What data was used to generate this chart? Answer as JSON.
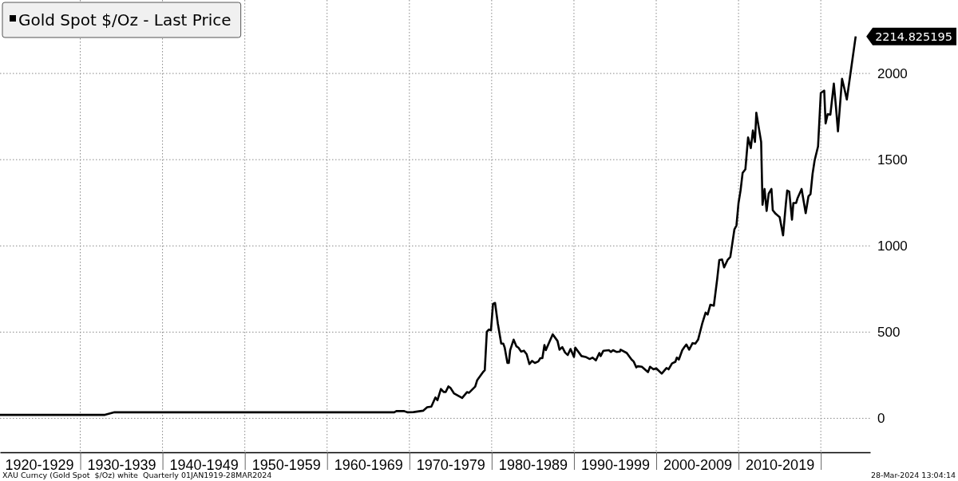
{
  "chart_data": {
    "type": "line",
    "legend": "top left",
    "grid": true,
    "xlim": [
      "1920-04",
      "2026-01"
    ],
    "ylim": [
      -197,
      2426
    ],
    "yticks": [
      0,
      500,
      1000,
      1500,
      2000
    ],
    "xticks": [
      {
        "value": "1925-01",
        "label": "1920-1929"
      },
      {
        "value": "1930-01",
        "label": null
      },
      {
        "value": "1935-01",
        "label": "1930-1939"
      },
      {
        "value": "1940-01",
        "label": null
      },
      {
        "value": "1945-01",
        "label": "1940-1949"
      },
      {
        "value": "1950-01",
        "label": null
      },
      {
        "value": "1955-01",
        "label": "1950-1959"
      },
      {
        "value": "1960-01",
        "label": null
      },
      {
        "value": "1965-01",
        "label": "1960-1969"
      },
      {
        "value": "1970-01",
        "label": null
      },
      {
        "value": "1975-01",
        "label": "1970-1979"
      },
      {
        "value": "1980-01",
        "label": null
      },
      {
        "value": "1985-01",
        "label": "1980-1989"
      },
      {
        "value": "1990-01",
        "label": null
      },
      {
        "value": "1995-01",
        "label": "1990-1999"
      },
      {
        "value": "2000-01",
        "label": null
      },
      {
        "value": "2005-01",
        "label": "2000-2009"
      },
      {
        "value": "2010-01",
        "label": null
      },
      {
        "value": "2015-01",
        "label": "2010-2019"
      },
      {
        "value": "2020-01",
        "label": null
      }
    ],
    "x": [
      "1920-04",
      "1933-01",
      "1934-03",
      "1968-03",
      "1968-06",
      "1969-05",
      "1969-10",
      "1970-07",
      "1971-09",
      "1972-03",
      "1972-09",
      "1973-03",
      "1973-06",
      "1973-11",
      "1974-03",
      "1974-06",
      "1974-10",
      "1975-01",
      "1975-06",
      "1976-06",
      "1977-01",
      "1977-04",
      "1978-01",
      "1978-04",
      "1979-01",
      "1979-03",
      "1979-06",
      "1979-09",
      "1979-12",
      "1980-03",
      "1980-06",
      "1980-10",
      "1981-03",
      "1981-06",
      "1981-08",
      "1981-12",
      "1982-02",
      "1982-04",
      "1982-09",
      "1983-01",
      "1983-04",
      "1983-08",
      "1983-12",
      "1984-04",
      "1984-08",
      "1984-12",
      "1985-04",
      "1985-09",
      "1985-12",
      "1986-03",
      "1986-06",
      "1986-08",
      "1987-01",
      "1987-06",
      "1988-01",
      "1988-04",
      "1988-08",
      "1988-12",
      "1989-04",
      "1989-08",
      "1990-01",
      "1990-03",
      "1990-12",
      "1991-06",
      "1991-12",
      "1992-04",
      "1992-09",
      "1993-02",
      "1993-04",
      "1993-08",
      "1994-04",
      "1994-07",
      "1994-10",
      "1995-03",
      "1995-08",
      "1995-09",
      "1996-06",
      "1997-01",
      "1997-04",
      "1997-08",
      "1997-10",
      "1998-04",
      "1999-01",
      "1999-04",
      "1999-09",
      "2000-01",
      "2000-09",
      "2001-04",
      "2001-07",
      "2001-12",
      "2002-05",
      "2002-07",
      "2002-10",
      "2003-03",
      "2003-07",
      "2003-09",
      "2004-01",
      "2004-06",
      "2004-10",
      "2005-02",
      "2005-08",
      "2006-01",
      "2006-04",
      "2006-08",
      "2007-01",
      "2007-06",
      "2007-09",
      "2008-01",
      "2008-04",
      "2008-09",
      "2009-01",
      "2009-07",
      "2009-10",
      "2010-01",
      "2010-04",
      "2010-07",
      "2010-11",
      "2011-03",
      "2011-07",
      "2011-10",
      "2012-01",
      "2012-03",
      "2012-10",
      "2012-12",
      "2013-03",
      "2013-06",
      "2013-09",
      "2014-01",
      "2014-03",
      "2014-07",
      "2015-01",
      "2015-06",
      "2015-10",
      "2015-12",
      "2016-03",
      "2016-07",
      "2016-09",
      "2017-01",
      "2017-03",
      "2017-09",
      "2018-03",
      "2018-07",
      "2018-10",
      "2019-01",
      "2019-04",
      "2019-09",
      "2020-01",
      "2020-06",
      "2020-08",
      "2020-11",
      "2021-03",
      "2021-08",
      "2021-11",
      "2022-02",
      "2022-08",
      "2022-11",
      "2023-03",
      "2024-03-28"
    ],
    "series": [
      {
        "name": "Gold Spot $/Oz - Last Price",
        "color": "#000000",
        "values": [
          20,
          20,
          35,
          35,
          42,
          42,
          35,
          36,
          44,
          64,
          68,
          121,
          105,
          170,
          153,
          153,
          185,
          176,
          145,
          118,
          152,
          148,
          184,
          222,
          271,
          279,
          502,
          515,
          510,
          664,
          669,
          549,
          433,
          433,
          410,
          321,
          321,
          395,
          456,
          418,
          410,
          387,
          392,
          372,
          315,
          333,
          321,
          330,
          349,
          349,
          425,
          395,
          441,
          487,
          449,
          398,
          413,
          382,
          367,
          402,
          356,
          410,
          361,
          356,
          344,
          352,
          336,
          379,
          361,
          392,
          395,
          385,
          395,
          385,
          387,
          398,
          379,
          341,
          330,
          295,
          302,
          299,
          268,
          299,
          284,
          290,
          259,
          292,
          284,
          318,
          328,
          352,
          341,
          395,
          418,
          428,
          398,
          436,
          433,
          456,
          548,
          613,
          602,
          659,
          653,
          810,
          918,
          921,
          875,
          918,
          936,
          1095,
          1118,
          1249,
          1321,
          1423,
          1444,
          1629,
          1567,
          1669,
          1603,
          1772,
          1603,
          1238,
          1330,
          1203,
          1303,
          1330,
          1207,
          1187,
          1167,
          1061,
          1241,
          1321,
          1315,
          1152,
          1249,
          1249,
          1275,
          1330,
          1190,
          1287,
          1300,
          1418,
          1495,
          1577,
          1887,
          1900,
          1710,
          1764,
          1761,
          1941,
          1810,
          1664,
          1969,
          1918,
          1849,
          2214.825195
        ]
      }
    ],
    "annotations": [
      "2214.825195",
      "XAU Curncy (Gold Spot  $/Oz) white  Quarterly 01JAN1919-28MAR2024",
      "28-Mar-2024 13:04:14"
    ]
  }
}
